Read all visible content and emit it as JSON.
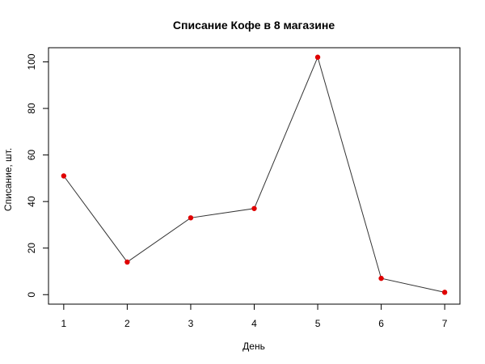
{
  "chart_data": {
    "type": "line",
    "title": "Списание Кофе в 8 магазине",
    "xlabel": "День",
    "ylabel": "Списание, шт.",
    "x": [
      1,
      2,
      3,
      4,
      5,
      6,
      7
    ],
    "series": [
      {
        "values": [
          51,
          14,
          33,
          37,
          102,
          7,
          1
        ],
        "line_color": "#333333",
        "marker_color": "#e00000"
      }
    ],
    "xlim": [
      0.76,
      7.24
    ],
    "ylim": [
      -4.08,
      106.08
    ],
    "xticks": [
      1,
      2,
      3,
      4,
      5,
      6,
      7
    ],
    "yticks": [
      0,
      20,
      40,
      60,
      80,
      100
    ],
    "grid": false,
    "legend": "none"
  }
}
